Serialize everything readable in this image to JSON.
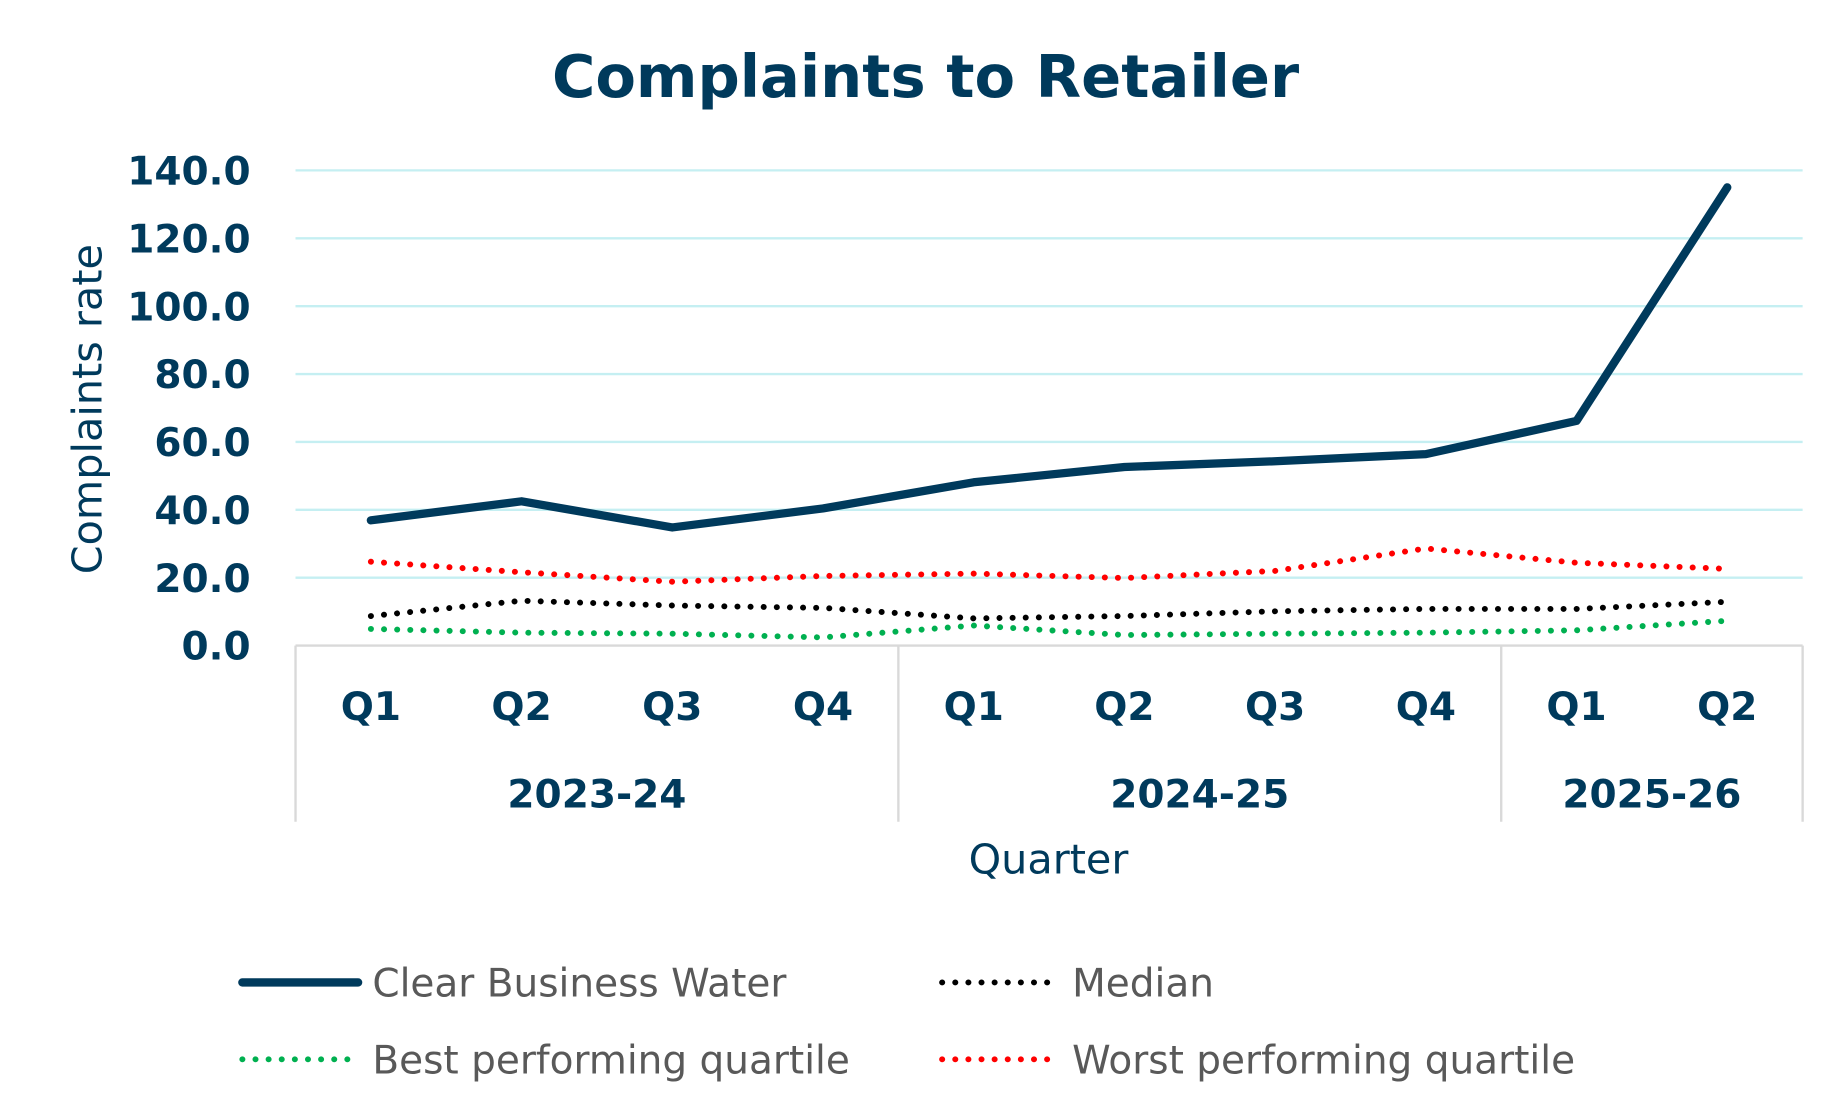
{
  "chart_data": {
    "type": "line",
    "title": "Complaints to Retailer",
    "xlabel": "Quarter",
    "ylabel": "Complaints rate",
    "ylim": [
      0,
      140
    ],
    "yticks": [
      "0.0",
      "20.0",
      "40.0",
      "60.0",
      "80.0",
      "100.0",
      "120.0",
      "140.0"
    ],
    "grid": true,
    "legend_placement": "bottom",
    "categories": [
      "Q1",
      "Q2",
      "Q3",
      "Q4",
      "Q1",
      "Q2",
      "Q3",
      "Q4",
      "Q1",
      "Q2"
    ],
    "groups": [
      {
        "label": "2023-24",
        "span": 4
      },
      {
        "label": "2024-25",
        "span": 4
      },
      {
        "label": "2025-26",
        "span": 2
      }
    ],
    "series": [
      {
        "name": "Clear Business Water",
        "color": "#003a5c",
        "style": "solid",
        "values": [
          36.9,
          42.5,
          34.8,
          40.4,
          48.1,
          52.6,
          54.3,
          56.4,
          66.2,
          135.0
        ]
      },
      {
        "name": "Median",
        "color": "#000000",
        "style": "dotted",
        "values": [
          8.7,
          13.2,
          11.8,
          11.1,
          8.0,
          8.7,
          10.1,
          10.8,
          10.8,
          12.9
        ]
      },
      {
        "name": "Best performing quartile",
        "color": "#00b050",
        "style": "dotted",
        "values": [
          4.9,
          3.8,
          3.5,
          2.4,
          5.9,
          3.1,
          3.5,
          3.8,
          4.5,
          7.3
        ]
      },
      {
        "name": "Worst performing quartile",
        "color": "#ff0000",
        "style": "dotted",
        "values": [
          24.7,
          21.6,
          18.8,
          20.5,
          21.2,
          19.9,
          22.0,
          28.6,
          24.4,
          22.6
        ]
      }
    ],
    "gridline_color": "#c5eff2"
  }
}
